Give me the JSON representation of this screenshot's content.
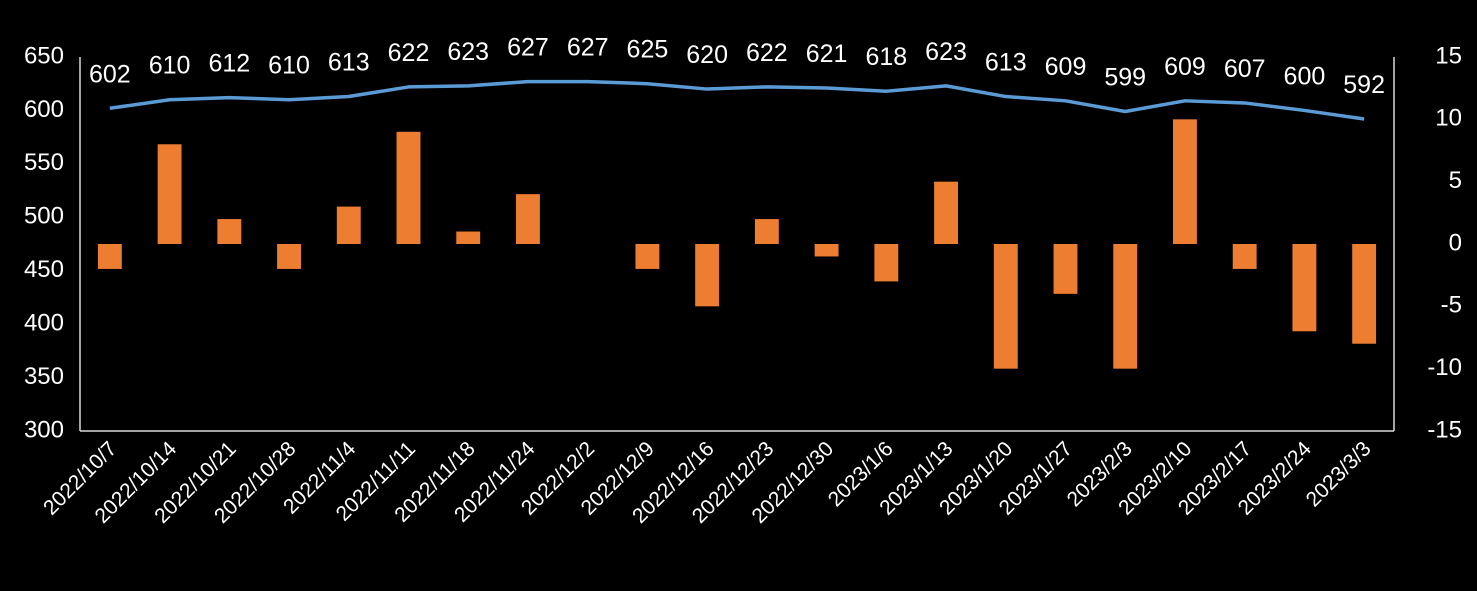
{
  "chart_data": {
    "type": "combo",
    "categories": [
      "2022/10/7",
      "2022/10/14",
      "2022/10/21",
      "2022/10/28",
      "2022/11/4",
      "2022/11/11",
      "2022/11/18",
      "2022/11/24",
      "2022/12/2",
      "2022/12/9",
      "2022/12/16",
      "2022/12/23",
      "2022/12/30",
      "2023/1/6",
      "2023/1/13",
      "2023/1/20",
      "2023/1/27",
      "2023/2/3",
      "2023/2/10",
      "2023/2/17",
      "2023/2/24",
      "2023/3/3"
    ],
    "series": [
      {
        "type": "line",
        "color": "#5b9bd5",
        "values": [
          602,
          610,
          612,
          610,
          613,
          622,
          623,
          627,
          627,
          625,
          620,
          622,
          621,
          618,
          623,
          613,
          609,
          599,
          609,
          607,
          600,
          592
        ]
      },
      {
        "type": "bar",
        "axis": "y2",
        "color": "#ed7d31",
        "values": [
          -2,
          8,
          2,
          -2,
          3,
          9,
          1,
          4,
          0,
          -2,
          -5,
          2,
          -1,
          -3,
          5,
          -10,
          -4,
          -10,
          10,
          -2,
          -7,
          -8
        ]
      }
    ],
    "ylim": [
      300,
      650
    ],
    "yticks": [
      300,
      350,
      400,
      450,
      500,
      550,
      600,
      650
    ],
    "y2lim": [
      -15,
      15
    ],
    "y2ticks": [
      -15,
      -10,
      -5,
      0,
      5,
      10,
      15
    ],
    "grid": false
  }
}
